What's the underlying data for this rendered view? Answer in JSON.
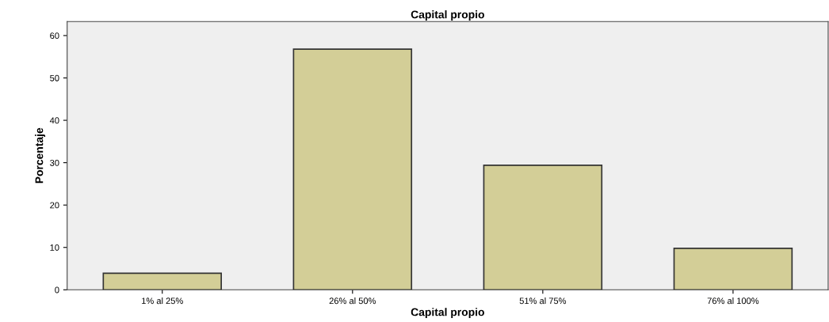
{
  "chart_data": {
    "type": "bar",
    "title": "Capital propio",
    "xlabel": "Capital propio",
    "ylabel": "Porcentaje",
    "categories": [
      "1% al 25%",
      "26% al 50%",
      "51% al 75%",
      "76% al 100%"
    ],
    "values": [
      3.9,
      56.8,
      29.4,
      9.8
    ],
    "color": "#d3ce97",
    "ylim": [
      0,
      63.3
    ],
    "yticks": [
      0,
      10,
      20,
      30,
      40,
      50,
      60
    ],
    "grid": false
  }
}
